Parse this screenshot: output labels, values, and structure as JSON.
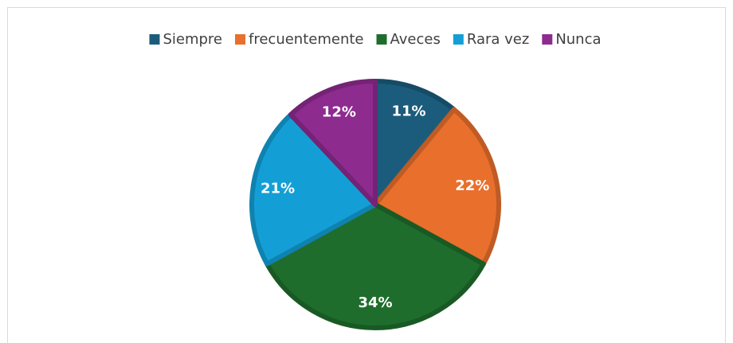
{
  "chart_data": {
    "type": "pie",
    "categories": [
      "Siempre",
      "frecuentemente",
      "Aveces",
      "Rara vez",
      "Nunca"
    ],
    "values": [
      11,
      22,
      34,
      21,
      12
    ],
    "value_labels": [
      "11%",
      "22%",
      "34%",
      "21%",
      "12%"
    ],
    "colors": [
      "#1b5c7c",
      "#e96f2c",
      "#1f6d2c",
      "#139fd6",
      "#8e2b8f"
    ],
    "legend": "top"
  }
}
